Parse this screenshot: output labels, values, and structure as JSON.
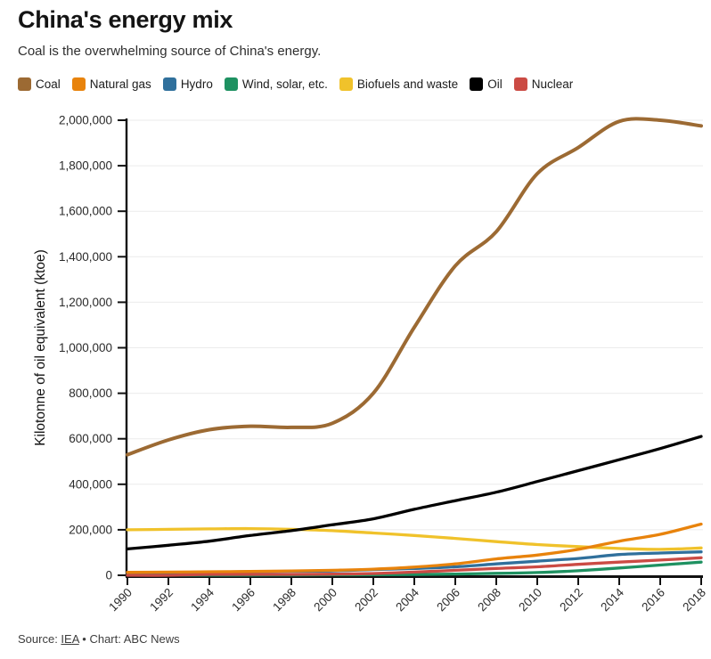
{
  "header": {
    "title": "China's energy mix",
    "subtitle": "Coal is the overwhelming source of China's energy."
  },
  "legend": [
    {
      "label": "Coal",
      "color": "#9c6a33"
    },
    {
      "label": "Natural gas",
      "color": "#e8830c"
    },
    {
      "label": "Hydro",
      "color": "#30709c"
    },
    {
      "label": "Wind, solar, etc.",
      "color": "#1e9161"
    },
    {
      "label": "Biofuels and waste",
      "color": "#f0c22b"
    },
    {
      "label": "Oil",
      "color": "#000000"
    },
    {
      "label": "Nuclear",
      "color": "#cb4b44"
    }
  ],
  "footer": {
    "source_label": "Source: ",
    "source_link": "IEA",
    "separator": " • ",
    "credit": "Chart: ABC News"
  },
  "chart_data": {
    "type": "line",
    "title": "China's energy mix",
    "xlabel": "",
    "ylabel": "Kilotonne of oil equivalent (ktoe)",
    "x": [
      1990,
      1992,
      1994,
      1996,
      1998,
      2000,
      2002,
      2004,
      2006,
      2008,
      2010,
      2012,
      2014,
      2016,
      2018
    ],
    "xlim": [
      1990,
      2018
    ],
    "ylim": [
      0,
      2000000
    ],
    "ytick_step": 200000,
    "grid": "horizontal",
    "legend_position": "top",
    "units": "ktoe",
    "series": [
      {
        "name": "Coal",
        "color": "#9c6a33",
        "values": [
          530000,
          595000,
          640000,
          655000,
          650000,
          668000,
          800000,
          1090000,
          1360000,
          1510000,
          1765000,
          1880000,
          1995000,
          2000000,
          1975000
        ]
      },
      {
        "name": "Hydro",
        "color": "#30709c",
        "values": [
          11000,
          12000,
          14000,
          16000,
          17500,
          19000,
          25000,
          30000,
          37000,
          50000,
          62000,
          74000,
          91000,
          98000,
          103000
        ]
      },
      {
        "name": "Wind, solar, etc.",
        "color": "#1e9161",
        "values": [
          300,
          500,
          700,
          900,
          1200,
          1800,
          2500,
          3500,
          5500,
          8500,
          12000,
          20000,
          32000,
          45000,
          58000
        ]
      },
      {
        "name": "Biofuels and waste",
        "color": "#f0c22b",
        "values": [
          200000,
          202000,
          204000,
          205000,
          202000,
          196000,
          186000,
          175000,
          162000,
          148000,
          135000,
          126000,
          118000,
          114000,
          120000
        ]
      },
      {
        "name": "Oil",
        "color": "#000000",
        "values": [
          116000,
          132000,
          150000,
          175000,
          196000,
          222000,
          248000,
          290000,
          328000,
          365000,
          412000,
          460000,
          508000,
          557000,
          610000
        ]
      },
      {
        "name": "Nuclear",
        "color": "#cb4b44",
        "values": [
          0,
          0,
          4000,
          4000,
          4000,
          5000,
          8000,
          14000,
          22000,
          30000,
          37000,
          48000,
          58000,
          67000,
          77000
        ]
      },
      {
        "name": "Natural gas",
        "color": "#e8830c",
        "values": [
          13000,
          14000,
          15500,
          17000,
          19000,
          22000,
          27000,
          36000,
          50000,
          72000,
          89000,
          114000,
          150000,
          180000,
          225000
        ]
      }
    ]
  }
}
